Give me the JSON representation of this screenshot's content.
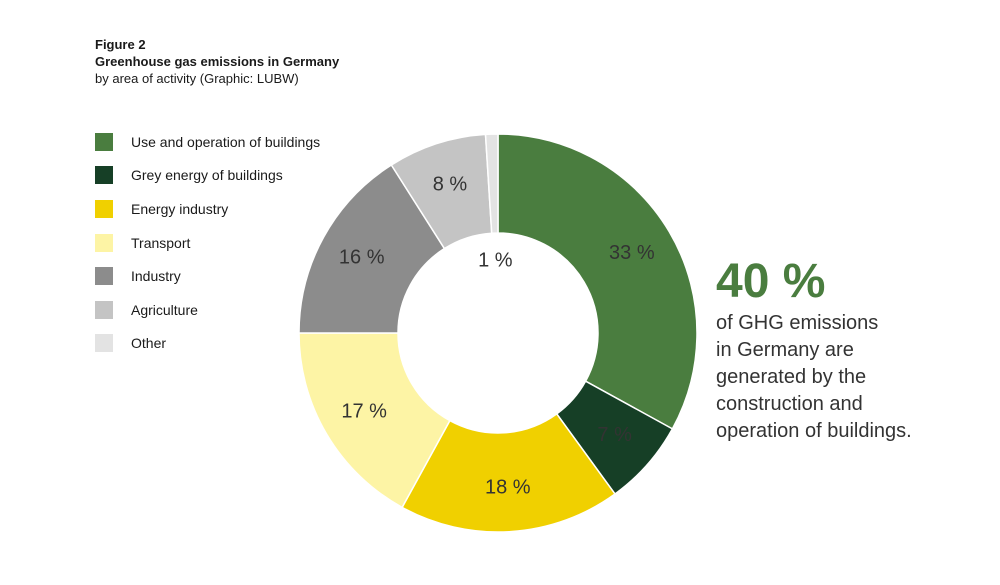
{
  "header": {
    "figure_label": "Figure 2",
    "title": "Greenhouse gas emissions in Germany",
    "subtitle": "by area of activity (Graphic: LUBW)"
  },
  "chart_data": {
    "type": "pie",
    "variant": "donut",
    "title": "Greenhouse gas emissions in Germany",
    "subtitle": "by area of activity (Graphic: LUBW)",
    "legend_position": "left",
    "unit": "%",
    "categories": [
      "Use and operation of buildings",
      "Grey energy of buildings",
      "Energy industry",
      "Transport",
      "Industry",
      "Agriculture",
      "Other"
    ],
    "values": [
      33,
      7,
      18,
      17,
      16,
      8,
      1
    ],
    "labels": [
      "33 %",
      "7 %",
      "18 %",
      "17 %",
      "16 %",
      "8 %",
      "1 %"
    ],
    "colors": [
      "#4a7d3f",
      "#163f26",
      "#f0d000",
      "#fdf4a5",
      "#8c8c8c",
      "#c4c4c4",
      "#e3e3e3"
    ]
  },
  "callout": {
    "value": "40 %",
    "lines": [
      "of GHG emissions",
      "in Germany are",
      "generated by the",
      "construction and",
      "operation of buildings."
    ]
  }
}
